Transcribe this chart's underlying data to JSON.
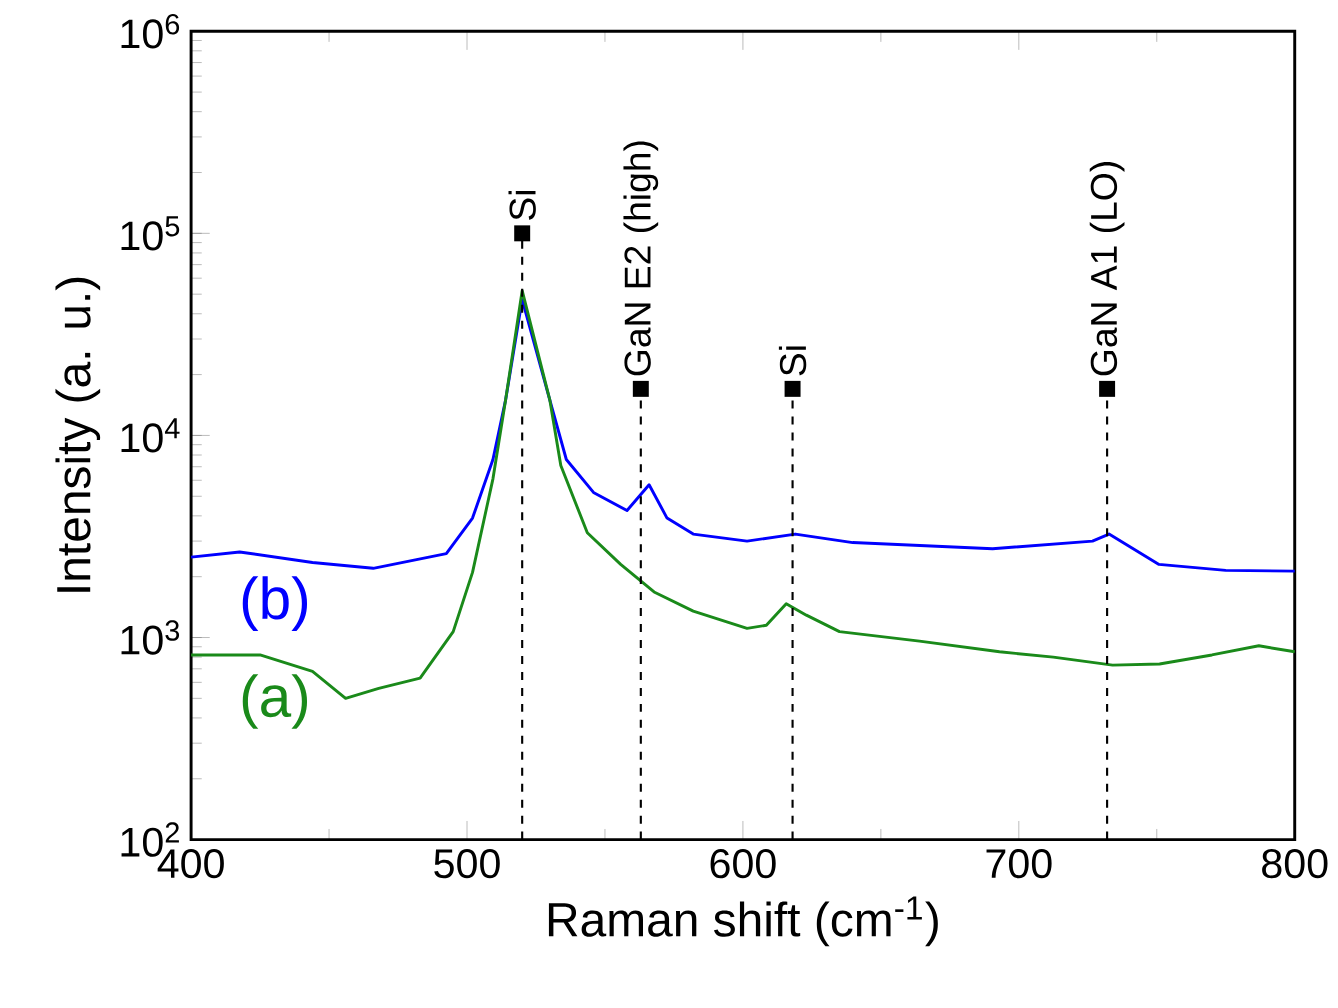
{
  "chart_data": {
    "type": "line",
    "xlabel": "Raman shift (cm$^{-1}$)",
    "ylabel": "Intensity (a. u.)",
    "log": "y",
    "xlim": [
      400,
      800
    ],
    "ylim": [
      100,
      1000000
    ],
    "xticks": [
      400,
      500,
      600,
      700,
      800
    ],
    "yticks": [
      {
        "value": 100,
        "label": "10$^{2}$"
      },
      {
        "value": 1000,
        "label": "10$^{3}$"
      },
      {
        "value": 10000,
        "label": "10$^{4}$"
      },
      {
        "value": 100000,
        "label": "10$^{5}$"
      },
      {
        "value": 1000000,
        "label": "10$^{6}$"
      }
    ],
    "grid": false,
    "legend": false,
    "series": [
      {
        "name": "(b)",
        "color": "#0000ff",
        "x": [
          400,
          417.6,
          444,
          466,
          492.5,
          502,
          509.4,
          514,
          520,
          530,
          536,
          546,
          558,
          566,
          572.5,
          582,
          601.5,
          619,
          639.8,
          690.5,
          726.7,
          732.7,
          750.8,
          775,
          800
        ],
        "values": [
          2500,
          2650,
          2350,
          2200,
          2600,
          3900,
          7600,
          15000,
          47000,
          15000,
          7600,
          5200,
          4250,
          5700,
          3900,
          3250,
          3000,
          3250,
          2950,
          2750,
          3000,
          3250,
          2300,
          2150,
          2130
        ]
      },
      {
        "name": "(a)",
        "color": "#1a8a1a",
        "x": [
          400,
          425,
          444,
          456,
          468,
          483,
          495,
          502,
          509.4,
          514,
          520,
          530,
          534,
          543.6,
          555.7,
          567.8,
          582,
          601.5,
          608.5,
          615.7,
          623,
          635,
          664,
          693,
          712.5,
          734,
          751,
          770,
          787,
          800
        ],
        "values": [
          820,
          820,
          680,
          500,
          560,
          630,
          1070,
          2100,
          6100,
          15000,
          52000,
          15000,
          7100,
          3300,
          2300,
          1680,
          1350,
          1110,
          1150,
          1470,
          1290,
          1070,
          960,
          850,
          800,
          730,
          740,
          820,
          910,
          850
        ]
      }
    ],
    "ref_lines": [
      {
        "axis": "x",
        "value": 520,
        "color": "#000000",
        "line_style": "dashed"
      },
      {
        "axis": "x",
        "value": 563,
        "color": "#000000",
        "line_style": "dashed"
      },
      {
        "axis": "x",
        "value": 618,
        "color": "#000000",
        "line_style": "dashed"
      },
      {
        "axis": "x",
        "value": 732,
        "color": "#000000",
        "line_style": "dashed"
      }
    ],
    "annotations": [
      {
        "text": "Si",
        "x": 520,
        "y": 100000
      },
      {
        "text": "GaN E2 (high)",
        "x": 563,
        "y": 17000
      },
      {
        "text": "Si",
        "x": 618,
        "y": 17000
      },
      {
        "text": "GaN A1 (LO)",
        "x": 732,
        "y": 17000
      }
    ]
  }
}
